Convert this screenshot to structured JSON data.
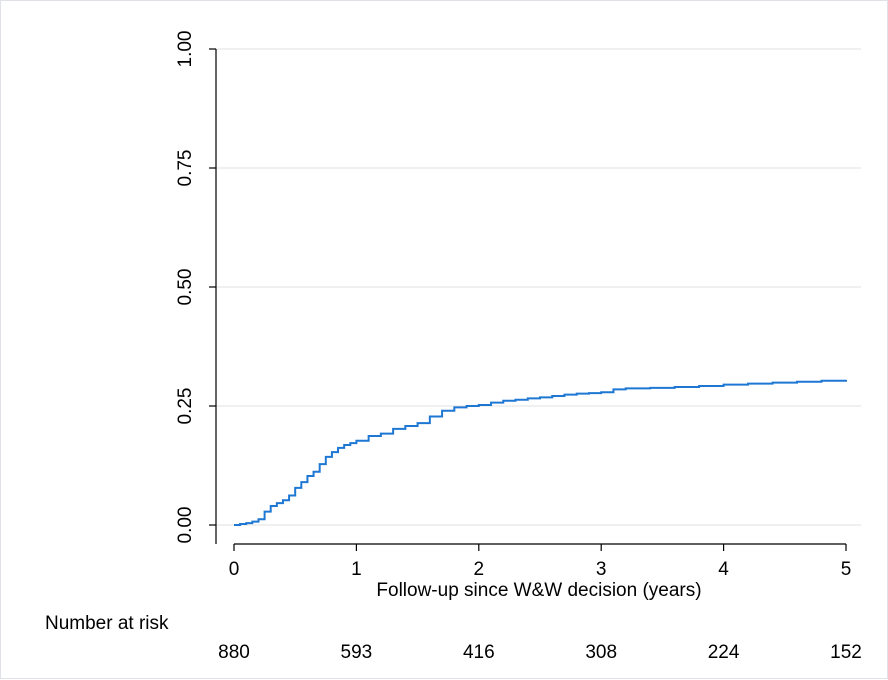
{
  "chart_data": {
    "type": "line",
    "title": "",
    "xlabel": "Follow-up since W&W decision (years)",
    "ylabel": "",
    "xlim": [
      0,
      5
    ],
    "ylim": [
      0,
      1
    ],
    "x_ticks": [
      "0",
      "1",
      "2",
      "3",
      "4",
      "5"
    ],
    "x_tick_values": [
      0,
      1,
      2,
      3,
      4,
      5
    ],
    "y_ticks": [
      "0.00",
      "0.25",
      "0.50",
      "0.75",
      "1.00"
    ],
    "y_tick_values": [
      0,
      0.25,
      0.5,
      0.75,
      1.0
    ],
    "grid": "horizontal",
    "line_color": "#1f77d4",
    "series": [
      {
        "x": [
          0,
          0.05,
          0.1,
          0.15,
          0.2,
          0.25,
          0.3,
          0.35,
          0.4,
          0.45,
          0.5,
          0.55,
          0.6,
          0.65,
          0.7,
          0.75,
          0.8,
          0.85,
          0.9,
          0.95,
          1.0,
          1.1,
          1.2,
          1.3,
          1.4,
          1.5,
          1.6,
          1.7,
          1.8,
          1.9,
          2.0,
          2.1,
          2.2,
          2.3,
          2.4,
          2.5,
          2.6,
          2.7,
          2.8,
          2.9,
          3.0,
          3.1,
          3.2,
          3.4,
          3.6,
          3.8,
          4.0,
          4.2,
          4.4,
          4.6,
          4.8,
          5.0
        ],
        "y": [
          0,
          0.002,
          0.004,
          0.007,
          0.012,
          0.028,
          0.04,
          0.046,
          0.052,
          0.062,
          0.078,
          0.09,
          0.103,
          0.112,
          0.128,
          0.143,
          0.153,
          0.162,
          0.168,
          0.172,
          0.177,
          0.187,
          0.192,
          0.202,
          0.208,
          0.214,
          0.228,
          0.24,
          0.247,
          0.25,
          0.252,
          0.257,
          0.261,
          0.263,
          0.266,
          0.268,
          0.271,
          0.274,
          0.276,
          0.277,
          0.279,
          0.285,
          0.287,
          0.288,
          0.29,
          0.292,
          0.295,
          0.297,
          0.299,
          0.301,
          0.303,
          0.305
        ]
      }
    ],
    "risk_table": {
      "label": "Number at risk",
      "counts": [
        "880",
        "593",
        "416",
        "308",
        "224",
        "152"
      ]
    }
  }
}
